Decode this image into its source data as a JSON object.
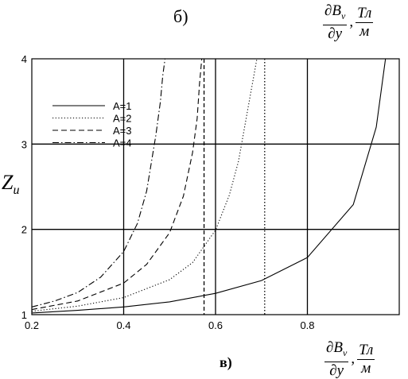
{
  "top_caption": "б)",
  "bottom_caption": "в)",
  "top_label": {
    "num": "∂B",
    "sub": "v",
    "den": "∂y",
    "sep": ",",
    "unit_num": "Тл",
    "unit_den": "м"
  },
  "x_label": {
    "num": "∂B",
    "sub": "v",
    "den": "∂y",
    "sep": ",",
    "unit_num": "Тл",
    "unit_den": "м"
  },
  "y_label": {
    "main": "Z",
    "sub": "и"
  },
  "chart_data": {
    "type": "line",
    "xlim": [
      0.2,
      1.0
    ],
    "ylim": [
      1,
      4
    ],
    "x_ticks": [
      "0.2",
      "0.4",
      "0.6",
      "0.8"
    ],
    "y_ticks": [
      "1",
      "2",
      "3",
      "4"
    ],
    "grid": true,
    "legend_position": "top-left",
    "vertical_lines": [
      {
        "x": 0.575,
        "style": "dashed"
      },
      {
        "x": 0.707,
        "style": "dotted"
      }
    ],
    "series": [
      {
        "name": "A=1",
        "style": "solid",
        "x": [
          0.2,
          0.3,
          0.4,
          0.5,
          0.6,
          0.7,
          0.8,
          0.9,
          0.95,
          0.97,
          0.985,
          0.99
        ],
        "y": [
          1.02,
          1.05,
          1.09,
          1.15,
          1.25,
          1.4,
          1.67,
          2.29,
          3.2,
          4.0,
          4.0,
          4.0
        ]
      },
      {
        "name": "A=2",
        "style": "dotted",
        "x": [
          0.2,
          0.3,
          0.4,
          0.5,
          0.55,
          0.6,
          0.63,
          0.65,
          0.67,
          0.68,
          0.69,
          0.695
        ],
        "y": [
          1.04,
          1.1,
          1.2,
          1.41,
          1.61,
          1.99,
          2.4,
          2.8,
          3.4,
          3.7,
          4.0,
          4.0
        ]
      },
      {
        "name": "A=3",
        "style": "dashed",
        "x": [
          0.2,
          0.3,
          0.4,
          0.45,
          0.5,
          0.53,
          0.55,
          0.56,
          0.565,
          0.57
        ],
        "y": [
          1.06,
          1.16,
          1.37,
          1.59,
          1.96,
          2.39,
          2.9,
          3.3,
          3.7,
          4.0
        ]
      },
      {
        "name": "A=4",
        "style": "dash-dot",
        "x": [
          0.2,
          0.25,
          0.3,
          0.35,
          0.4,
          0.43,
          0.45,
          0.47,
          0.48,
          0.485,
          0.49
        ],
        "y": [
          1.09,
          1.16,
          1.26,
          1.44,
          1.74,
          2.07,
          2.45,
          3.1,
          3.5,
          3.8,
          4.0
        ]
      }
    ]
  }
}
